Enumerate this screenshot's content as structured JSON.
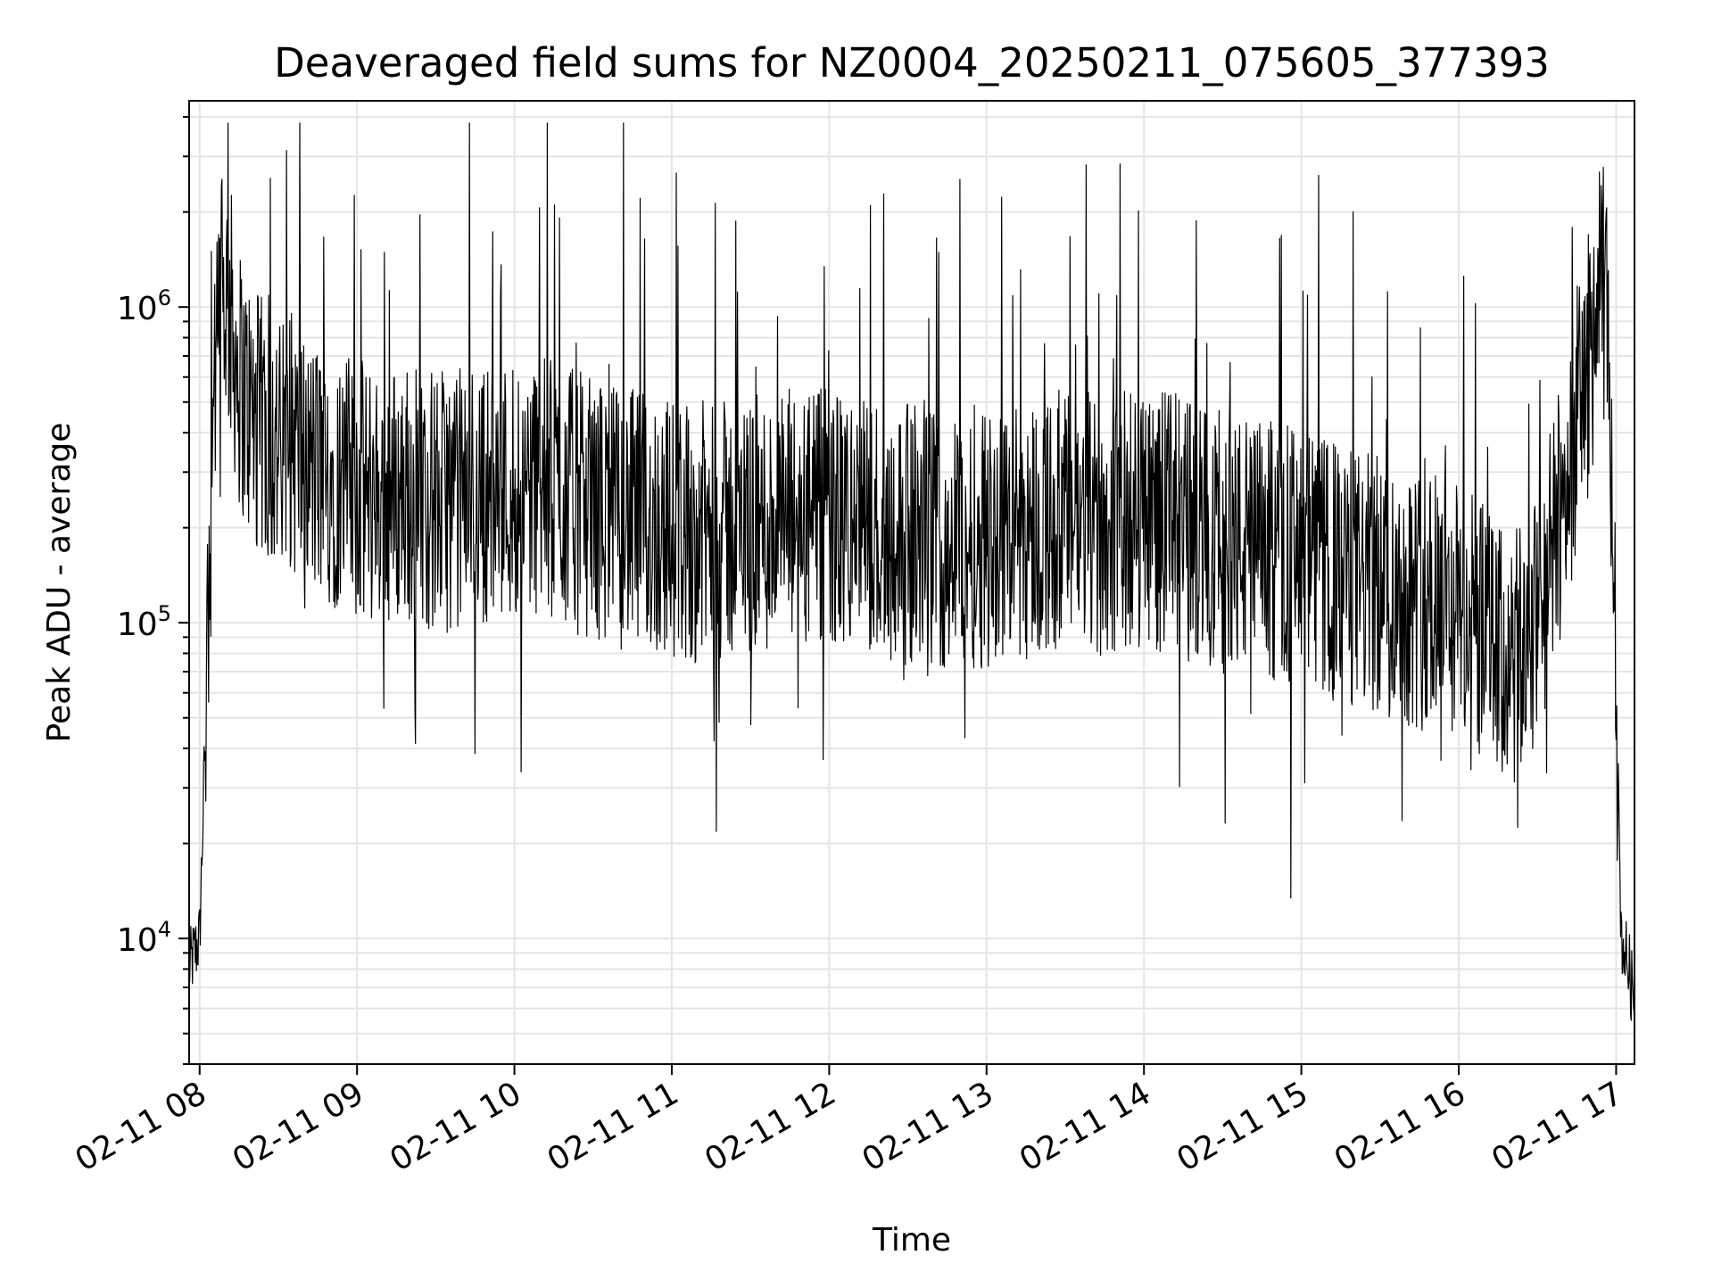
{
  "chart_data": {
    "type": "line",
    "title": "Deaveraged field sums for NZ0004_20250211_075605_377393",
    "xlabel": "Time",
    "ylabel": "Peak ADU - average",
    "yscale": "log",
    "ylim": [
      4000,
      4500000
    ],
    "xlim": [
      "2025-02-11 07:56",
      "2025-02-11 17:07"
    ],
    "grid": true,
    "line_color": "#000000",
    "grid_color": "#e5e5e5",
    "x_ticks": [
      {
        "value": "2025-02-11 08:00",
        "label": "02-11 08"
      },
      {
        "value": "2025-02-11 09:00",
        "label": "02-11 09"
      },
      {
        "value": "2025-02-11 10:00",
        "label": "02-11 10"
      },
      {
        "value": "2025-02-11 11:00",
        "label": "02-11 11"
      },
      {
        "value": "2025-02-11 12:00",
        "label": "02-11 12"
      },
      {
        "value": "2025-02-11 13:00",
        "label": "02-11 13"
      },
      {
        "value": "2025-02-11 14:00",
        "label": "02-11 14"
      },
      {
        "value": "2025-02-11 15:00",
        "label": "02-11 15"
      },
      {
        "value": "2025-02-11 16:00",
        "label": "02-11 16"
      },
      {
        "value": "2025-02-11 17:00",
        "label": "02-11 17"
      }
    ],
    "y_ticks": [
      {
        "value": 10000,
        "base": "10",
        "exp": "4"
      },
      {
        "value": 100000,
        "base": "10",
        "exp": "5"
      },
      {
        "value": 1000000,
        "base": "10",
        "exp": "6"
      }
    ],
    "series": [
      {
        "x": [
          "2025-02-11 07:56",
          "2025-02-11 07:58",
          "2025-02-11 08:00",
          "2025-02-11 08:02",
          "2025-02-11 08:05",
          "2025-02-11 08:08",
          "2025-02-11 08:10",
          "2025-02-11 08:12",
          "2025-02-11 08:15",
          "2025-02-11 08:20",
          "2025-02-11 08:25",
          "2025-02-11 08:30",
          "2025-02-11 08:35",
          "2025-02-11 08:40",
          "2025-02-11 08:45",
          "2025-02-11 08:50",
          "2025-02-11 08:55",
          "2025-02-11 09:00",
          "2025-02-11 09:10",
          "2025-02-11 09:20",
          "2025-02-11 09:30",
          "2025-02-11 09:40",
          "2025-02-11 09:50",
          "2025-02-11 10:00",
          "2025-02-11 10:05",
          "2025-02-11 10:15",
          "2025-02-11 10:30",
          "2025-02-11 10:45",
          "2025-02-11 11:00",
          "2025-02-11 11:15",
          "2025-02-11 11:30",
          "2025-02-11 11:45",
          "2025-02-11 12:00",
          "2025-02-11 12:15",
          "2025-02-11 12:30",
          "2025-02-11 12:45",
          "2025-02-11 13:00",
          "2025-02-11 13:15",
          "2025-02-11 13:30",
          "2025-02-11 13:45",
          "2025-02-11 14:00",
          "2025-02-11 14:15",
          "2025-02-11 14:30",
          "2025-02-11 14:45",
          "2025-02-11 15:00",
          "2025-02-11 15:15",
          "2025-02-11 15:30",
          "2025-02-11 15:45",
          "2025-02-11 16:00",
          "2025-02-11 16:10",
          "2025-02-11 16:20",
          "2025-02-11 16:30",
          "2025-02-11 16:40",
          "2025-02-11 16:45",
          "2025-02-11 16:50",
          "2025-02-11 16:53",
          "2025-02-11 16:55",
          "2025-02-11 16:57",
          "2025-02-11 17:00",
          "2025-02-11 17:02",
          "2025-02-11 17:05",
          "2025-02-11 17:07"
        ],
        "y": [
          8000,
          9000,
          10000,
          40000,
          400000,
          900000,
          1100000,
          900000,
          600000,
          450000,
          400000,
          350000,
          380000,
          320000,
          300000,
          290000,
          280000,
          260000,
          250000,
          260000,
          240000,
          250000,
          260000,
          270000,
          280000,
          260000,
          230000,
          210000,
          200000,
          190000,
          200000,
          210000,
          210000,
          200000,
          190000,
          180000,
          190000,
          200000,
          210000,
          200000,
          220000,
          200000,
          180000,
          170000,
          160000,
          140000,
          130000,
          120000,
          110000,
          90000,
          70000,
          100000,
          250000,
          450000,
          700000,
          1000000,
          1100000,
          900000,
          60000,
          10000,
          8000,
          6000
        ],
        "noise": "dense high-frequency fluctuations between ~5e4 and ~2e6"
      }
    ]
  }
}
